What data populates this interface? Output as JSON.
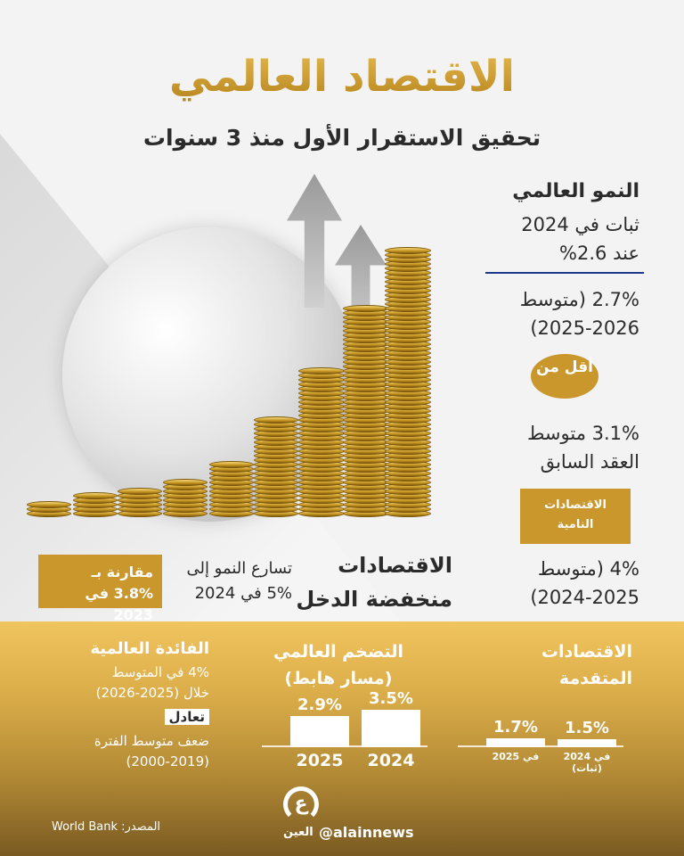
{
  "header": {
    "title": "الاقتصاد العالمي",
    "subtitle": "تحقيق الاستقرار الأول منذ 3 سنوات"
  },
  "global_growth": {
    "heading": "النمو العالمي",
    "line1": "ثبات في 2024",
    "line2": "عند 2.6%",
    "avg_line1": "2.7% (متوسط",
    "avg_line2": "2025-2026)",
    "badge": "أقل من",
    "prev_line1": "3.1% متوسط",
    "prev_line2": "العقد السابق"
  },
  "developing": {
    "badge_line1": "الاقتصادات",
    "badge_line2": "النامية",
    "line1": "4% (متوسط",
    "line2": "2024-2025)"
  },
  "low_income": {
    "heading_line1": "الاقتصادات",
    "heading_line2": "منخفضة الدخل",
    "text_line1": "تسارع النمو إلى",
    "text_line2": "5% في 2024",
    "compare_line1": "مقارنة بـ",
    "compare_line2": "3.8% في 2023"
  },
  "advanced": {
    "heading_line1": "الاقتصادات",
    "heading_line2": "المتقدمة",
    "bars": [
      {
        "label": "في 2024 (ثبات)",
        "value": 1.5,
        "text": "1.5%"
      },
      {
        "label": "في 2025",
        "value": 1.7,
        "text": "1.7%"
      }
    ]
  },
  "inflation": {
    "heading": "التضخم العالمي",
    "subheading": "(مسار هابط)",
    "bars": [
      {
        "label": "2024",
        "value": 3.5,
        "text": "3.5%"
      },
      {
        "label": "2025",
        "value": 2.9,
        "text": "2.9%"
      }
    ]
  },
  "interest": {
    "heading": "الفائدة العالمية",
    "line1": "4% في المتوسط",
    "line2": "خلال (2025-2026)",
    "tag": "تعادل",
    "line3": "ضعف متوسط الفترة",
    "line4": "(2000-2019)"
  },
  "footer": {
    "source": "المصدر: World Bank",
    "handle": "@alainnews",
    "logo_text": "العين"
  },
  "colors": {
    "gold": "#c9972c",
    "dark": "#2b2b2b",
    "divider": "#1c3a8c"
  }
}
